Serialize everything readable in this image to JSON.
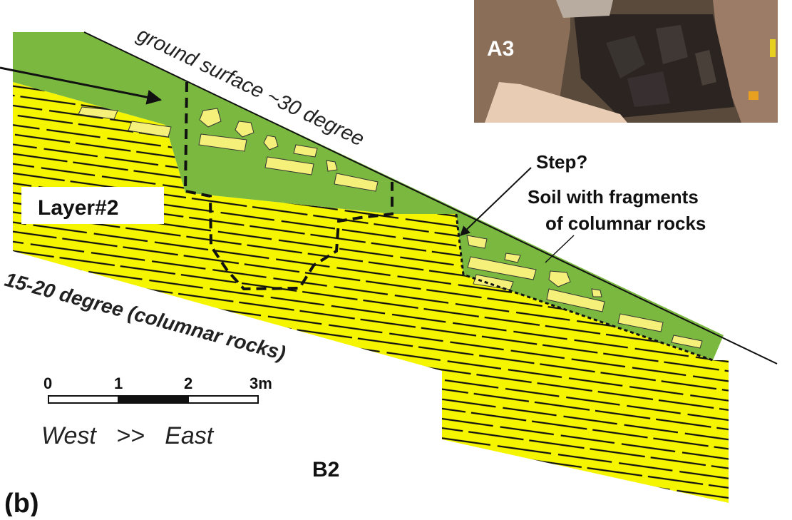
{
  "panel_label": "(b)",
  "section_label": "B2",
  "photo": {
    "label": "A3"
  },
  "labels": {
    "ground_surface": "ground surface ~30 degree",
    "layer": "Layer#2",
    "bedrock": "15-20 degree (columnar rocks)",
    "step": "Step?",
    "soil_line1": "Soil with fragments",
    "soil_line2": "of columnar rocks"
  },
  "scale_bar": {
    "ticks": [
      "0",
      "1",
      "2",
      "3m"
    ],
    "direction": "West   >>   East"
  },
  "colors": {
    "soil": "#7ab840",
    "bedrock": "#f5f500",
    "fragments": "#f5f07a",
    "lines": "#111111"
  }
}
